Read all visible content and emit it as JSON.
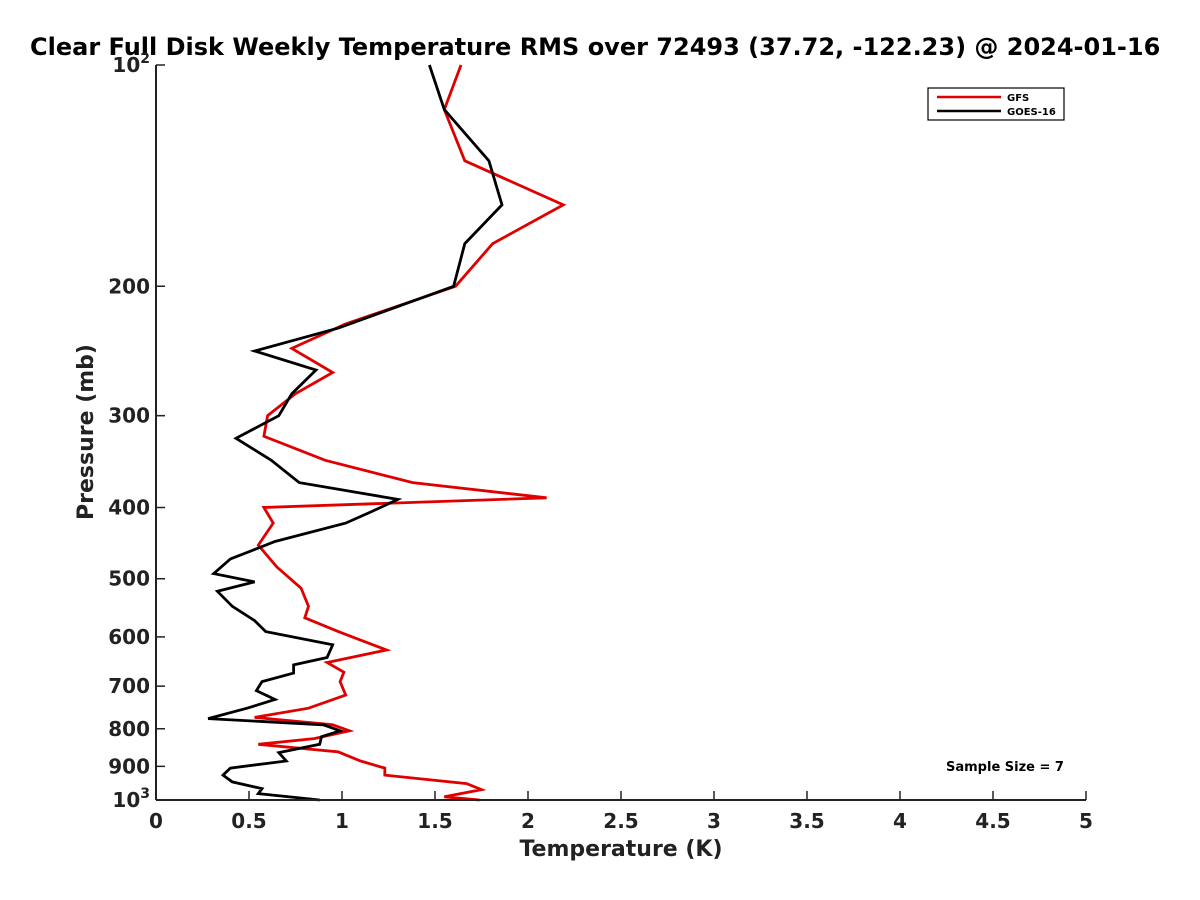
{
  "chart_data": {
    "type": "line",
    "title": "Clear Full Disk Weekly Temperature RMS over 72493 (37.72, -122.23) @ 2024-01-16",
    "xlabel": "Temperature (K)",
    "ylabel": "Pressure (mb)",
    "xlim": [
      0,
      5
    ],
    "ylim": [
      100,
      1000
    ],
    "y_scale": "log",
    "y_reversed": true,
    "grid": false,
    "legend_position": "top-right",
    "x_ticks": [
      "0",
      "0.5",
      "1",
      "1.5",
      "2",
      "2.5",
      "3",
      "3.5",
      "4",
      "4.5",
      "5"
    ],
    "y_ticks": [
      {
        "value": 100,
        "base": "10",
        "exp": "2"
      },
      {
        "value": 200,
        "label": "200"
      },
      {
        "value": 300,
        "label": "300"
      },
      {
        "value": 400,
        "label": "400"
      },
      {
        "value": 500,
        "label": "500"
      },
      {
        "value": 600,
        "label": "600"
      },
      {
        "value": 700,
        "label": "700"
      },
      {
        "value": 800,
        "label": "800"
      },
      {
        "value": 900,
        "label": "900"
      },
      {
        "value": 1000,
        "base": "10",
        "exp": "3"
      }
    ],
    "annotation": "Sample Size = 7",
    "series": [
      {
        "name": "GFS",
        "color": "#e00000",
        "points": [
          [
            1.64,
            100
          ],
          [
            1.55,
            115
          ],
          [
            1.66,
            135
          ],
          [
            2.19,
            155
          ],
          [
            1.81,
            175
          ],
          [
            1.61,
            200
          ],
          [
            1.02,
            225
          ],
          [
            0.73,
            243
          ],
          [
            0.95,
            262
          ],
          [
            0.75,
            280
          ],
          [
            0.6,
            300
          ],
          [
            0.58,
            320
          ],
          [
            0.91,
            345
          ],
          [
            1.38,
            370
          ],
          [
            2.1,
            388
          ],
          [
            0.58,
            400
          ],
          [
            0.63,
            420
          ],
          [
            0.55,
            450
          ],
          [
            0.65,
            482
          ],
          [
            0.78,
            515
          ],
          [
            0.82,
            545
          ],
          [
            0.8,
            565
          ],
          [
            0.98,
            590
          ],
          [
            1.24,
            625
          ],
          [
            0.92,
            650
          ],
          [
            1.01,
            670
          ],
          [
            0.99,
            690
          ],
          [
            1.02,
            720
          ],
          [
            0.82,
            750
          ],
          [
            0.53,
            772
          ],
          [
            0.95,
            790
          ],
          [
            1.04,
            805
          ],
          [
            0.85,
            825
          ],
          [
            0.55,
            840
          ],
          [
            0.98,
            860
          ],
          [
            1.1,
            885
          ],
          [
            1.23,
            905
          ],
          [
            1.23,
            925
          ],
          [
            1.67,
            950
          ],
          [
            1.75,
            968
          ],
          [
            1.55,
            990
          ],
          [
            1.74,
            1000
          ]
        ]
      },
      {
        "name": "GOES-16",
        "color": "#000000",
        "points": [
          [
            1.47,
            100
          ],
          [
            1.55,
            115
          ],
          [
            1.79,
            135
          ],
          [
            1.86,
            155
          ],
          [
            1.66,
            175
          ],
          [
            1.6,
            200
          ],
          [
            0.98,
            228
          ],
          [
            0.53,
            245
          ],
          [
            0.86,
            260
          ],
          [
            0.73,
            280
          ],
          [
            0.66,
            300
          ],
          [
            0.43,
            322
          ],
          [
            0.62,
            345
          ],
          [
            0.77,
            370
          ],
          [
            1.3,
            390
          ],
          [
            1.16,
            405
          ],
          [
            1.02,
            420
          ],
          [
            0.64,
            445
          ],
          [
            0.4,
            470
          ],
          [
            0.31,
            492
          ],
          [
            0.53,
            505
          ],
          [
            0.33,
            520
          ],
          [
            0.41,
            545
          ],
          [
            0.53,
            570
          ],
          [
            0.59,
            590
          ],
          [
            0.95,
            615
          ],
          [
            0.92,
            640
          ],
          [
            0.74,
            655
          ],
          [
            0.74,
            672
          ],
          [
            0.57,
            690
          ],
          [
            0.54,
            710
          ],
          [
            0.64,
            730
          ],
          [
            0.49,
            750
          ],
          [
            0.28,
            775
          ],
          [
            0.9,
            790
          ],
          [
            0.99,
            805
          ],
          [
            0.89,
            820
          ],
          [
            0.88,
            840
          ],
          [
            0.66,
            862
          ],
          [
            0.7,
            885
          ],
          [
            0.4,
            905
          ],
          [
            0.36,
            925
          ],
          [
            0.41,
            945
          ],
          [
            0.57,
            965
          ],
          [
            0.55,
            980
          ],
          [
            0.88,
            1000
          ]
        ]
      }
    ]
  }
}
